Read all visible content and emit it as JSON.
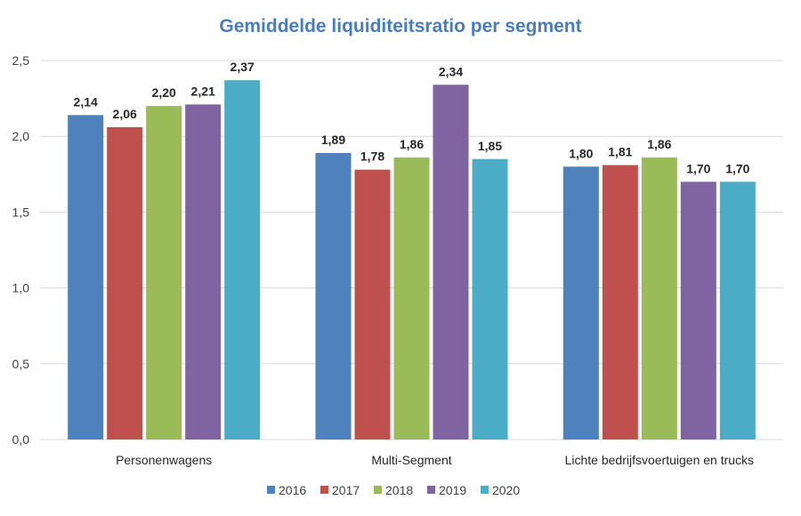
{
  "chart_data": {
    "type": "bar",
    "title": "Gemiddelde liquiditeitsratio per segment",
    "title_color": "#4a7ebb",
    "categories": [
      "Personenwagens",
      "Multi-Segment",
      "Lichte bedrijfsvoertuigen en trucks"
    ],
    "series": [
      {
        "name": "2016",
        "color": "#4f81bd",
        "values": [
          2.14,
          1.89,
          1.8
        ],
        "labels": [
          "2,14",
          "1,89",
          "1,80"
        ]
      },
      {
        "name": "2017",
        "color": "#c0504d",
        "values": [
          2.06,
          1.78,
          1.81
        ],
        "labels": [
          "2,06",
          "1,78",
          "1,81"
        ]
      },
      {
        "name": "2018",
        "color": "#9bbb59",
        "values": [
          2.2,
          1.86,
          1.86
        ],
        "labels": [
          "2,20",
          "1,86",
          "1,86"
        ]
      },
      {
        "name": "2019",
        "color": "#8064a2",
        "values": [
          2.21,
          2.34,
          1.7
        ],
        "labels": [
          "2,21",
          "2,34",
          "1,70"
        ]
      },
      {
        "name": "2020",
        "color": "#4bacc6",
        "values": [
          2.37,
          1.85,
          1.7
        ],
        "labels": [
          "2,37",
          "1,85",
          "1,70"
        ]
      }
    ],
    "ylim": [
      0,
      2.5
    ],
    "yticks": [
      0,
      0.5,
      1.0,
      1.5,
      2.0,
      2.5
    ],
    "ytick_labels": [
      "0,0",
      "0,5",
      "1,0",
      "1,5",
      "2,0",
      "2,5"
    ],
    "xlabel": "",
    "ylabel": "",
    "grid": true,
    "legend_position": "bottom"
  }
}
